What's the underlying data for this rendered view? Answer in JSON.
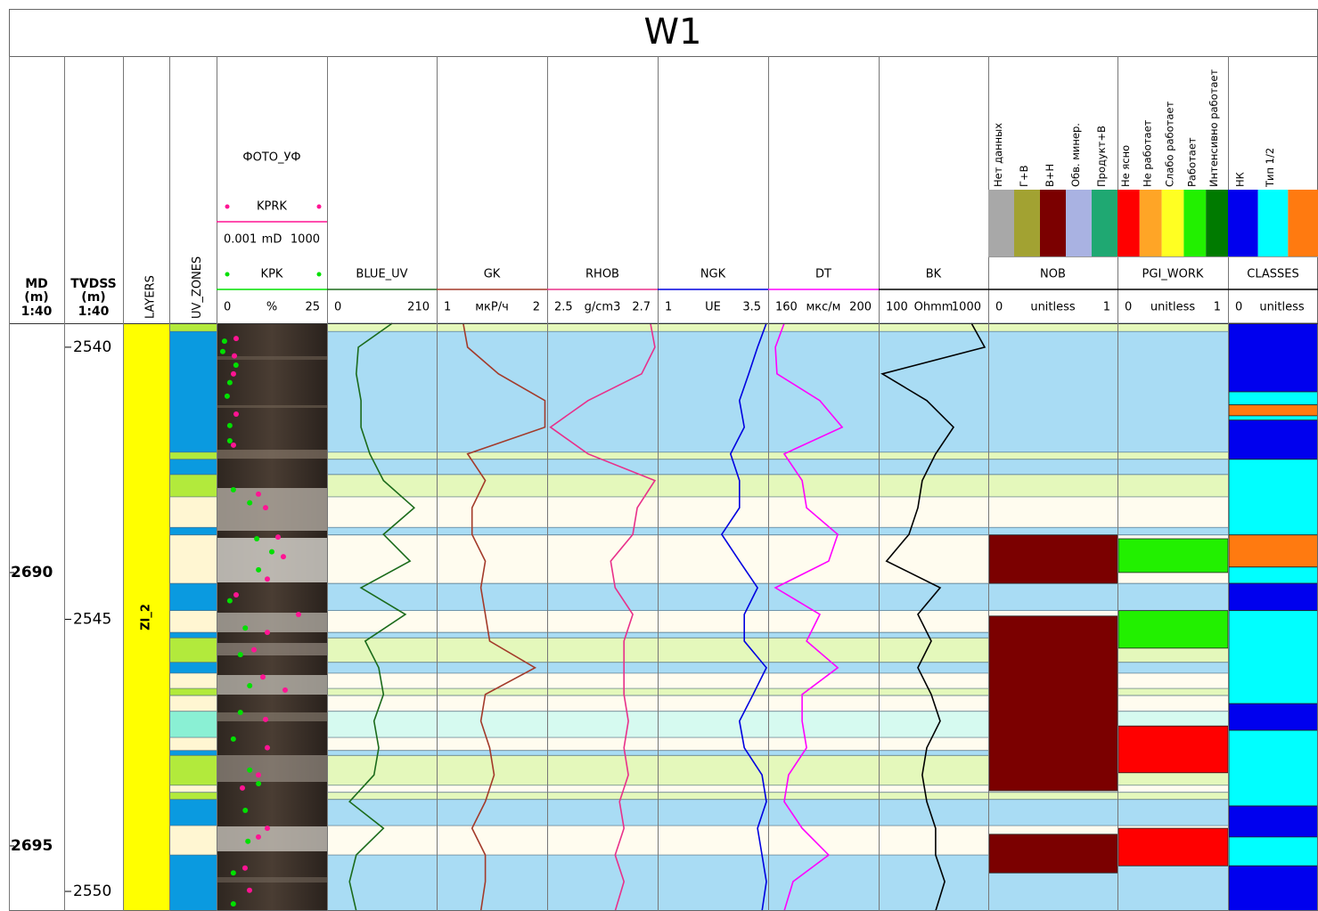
{
  "title": "W1",
  "curve_depths": [
    2539.56,
    2540.0,
    2540.49,
    2540.98,
    2541.47,
    2541.96,
    2542.45,
    2542.95,
    2543.44,
    2543.93,
    2544.42,
    2544.91,
    2545.4,
    2545.89,
    2546.38,
    2546.87,
    2547.36,
    2547.86,
    2548.35,
    2548.84,
    2549.33,
    2549.82,
    2550.36
  ],
  "tracks": [
    {
      "name": "MD",
      "unit": "(m)",
      "scale": "1:40",
      "lim": [
        2685.44,
        2696.19
      ],
      "ticks": [
        2690,
        2695
      ]
    },
    {
      "name": "TVDSS",
      "unit": "(m)",
      "scale": "1:40",
      "lim": [
        2539.56,
        2550.36
      ],
      "ticks": [
        2540,
        2545,
        2550
      ]
    },
    {
      "name": "LAYERS",
      "layers": [
        {
          "name": "ZI_2",
          "color": "#ffff00"
        }
      ]
    },
    {
      "name": "UV_ZONES",
      "zones": [
        {
          "top": 2539.56,
          "base": 2539.71,
          "color": "#b2ea3c"
        },
        {
          "top": 2539.71,
          "base": 2541.93,
          "color": "#0a9ae0"
        },
        {
          "top": 2541.93,
          "base": 2542.06,
          "color": "#b2ea3c"
        },
        {
          "top": 2542.06,
          "base": 2542.34,
          "color": "#0a9ae0"
        },
        {
          "top": 2542.34,
          "base": 2542.75,
          "color": "#b2ea3c"
        },
        {
          "top": 2542.75,
          "base": 2543.31,
          "color": "#fff6d2"
        },
        {
          "top": 2543.31,
          "base": 2543.45,
          "color": "#0a9ae0"
        },
        {
          "top": 2543.45,
          "base": 2544.34,
          "color": "#fff6d2"
        },
        {
          "top": 2544.34,
          "base": 2544.84,
          "color": "#0a9ae0"
        },
        {
          "top": 2544.84,
          "base": 2545.24,
          "color": "#fff6d2"
        },
        {
          "top": 2545.24,
          "base": 2545.34,
          "color": "#0a9ae0"
        },
        {
          "top": 2545.34,
          "base": 2545.79,
          "color": "#b2ea3c"
        },
        {
          "top": 2545.79,
          "base": 2545.99,
          "color": "#0a9ae0"
        },
        {
          "top": 2545.99,
          "base": 2546.27,
          "color": "#fff6d2"
        },
        {
          "top": 2546.27,
          "base": 2546.4,
          "color": "#b2ea3c"
        },
        {
          "top": 2546.4,
          "base": 2546.69,
          "color": "#fff6d2"
        },
        {
          "top": 2546.69,
          "base": 2547.17,
          "color": "#8af0d4"
        },
        {
          "top": 2547.17,
          "base": 2547.41,
          "color": "#fff6d2"
        },
        {
          "top": 2547.41,
          "base": 2547.5,
          "color": "#0a9ae0"
        },
        {
          "top": 2547.5,
          "base": 2548.05,
          "color": "#b2ea3c"
        },
        {
          "top": 2548.05,
          "base": 2548.18,
          "color": "#fff6d2"
        },
        {
          "top": 2548.18,
          "base": 2548.31,
          "color": "#b2ea3c"
        },
        {
          "top": 2548.31,
          "base": 2548.79,
          "color": "#0a9ae0"
        },
        {
          "top": 2548.79,
          "base": 2549.33,
          "color": "#fff6d2"
        },
        {
          "top": 2549.33,
          "base": 2550.36,
          "color": "#0a9ae0"
        }
      ]
    },
    {
      "name": "ФОТО_УФ",
      "curves": [
        {
          "name": "KPRK",
          "type": "scatter",
          "unit": "mD",
          "scale": [
            0.001,
            1000
          ],
          "log": true,
          "color": "#ff1493",
          "depths": [
            2539.84,
            2540.16,
            2540.49,
            2541.23,
            2541.8,
            2542.7,
            2542.95,
            2543.49,
            2543.85,
            2544.26,
            2544.55,
            2544.91,
            2545.24,
            2545.56,
            2546.06,
            2546.3,
            2546.84,
            2547.36,
            2547.86,
            2548.1,
            2548.84,
            2549.0,
            2549.57,
            2549.98
          ],
          "values": [
            0.0116,
            0.0093,
            0.0083,
            0.0116,
            0.0083,
            0.188,
            0.458,
            2.18,
            4.25,
            0.573,
            0.0116,
            28.2,
            0.573,
            0.108,
            0.328,
            5.31,
            0.458,
            0.573,
            0.188,
            0.0253,
            0.573,
            0.188,
            0.0353,
            0.0617
          ]
        },
        {
          "name": "KPK",
          "type": "scatter",
          "unit": "%",
          "scale": [
            0,
            25
          ],
          "color": "#00e000",
          "depths": [
            2539.89,
            2540.08,
            2540.33,
            2540.65,
            2540.9,
            2541.44,
            2541.72,
            2542.62,
            2542.86,
            2543.52,
            2543.76,
            2544.09,
            2544.66,
            2545.16,
            2545.65,
            2546.22,
            2546.71,
            2547.2,
            2547.77,
            2548.02,
            2548.51,
            2549.08,
            2549.66,
            2550.23
          ],
          "values": [
            1.8,
            1.4,
            4.4,
            3.0,
            2.4,
            3.0,
            3.0,
            3.8,
            7.5,
            9.1,
            12.5,
            9.5,
            3.0,
            6.5,
            5.4,
            7.5,
            5.4,
            3.8,
            7.5,
            9.5,
            6.5,
            7.1,
            3.8,
            3.8
          ]
        }
      ]
    },
    {
      "curves": [
        {
          "name": "BLUE_UV",
          "type": "line",
          "scale": [
            0,
            210
          ],
          "color": "#1b6b1b",
          "values": [
            125,
            60,
            56,
            65,
            65,
            82,
            108,
            167,
            108,
            159,
            65,
            150,
            73,
            99,
            108,
            90,
            99,
            90,
            43,
            108,
            56,
            43,
            56
          ]
        }
      ]
    },
    {
      "curves": [
        {
          "name": "GK",
          "type": "line",
          "unit": "мкР/ч",
          "scale": [
            1,
            2
          ],
          "color": "#a33a2a",
          "values": [
            1.24,
            1.28,
            1.56,
            1.98,
            1.98,
            1.28,
            1.44,
            1.32,
            1.32,
            1.44,
            1.4,
            1.44,
            1.48,
            1.89,
            1.44,
            1.4,
            1.48,
            1.52,
            1.44,
            1.32,
            1.44,
            1.44,
            1.4
          ]
        }
      ]
    },
    {
      "curves": [
        {
          "name": "RHOB",
          "type": "line",
          "unit": "g/cm3",
          "scale": [
            2.5,
            2.7
          ],
          "color": "#e8308a",
          "values": [
            2.687,
            2.695,
            2.671,
            2.574,
            2.506,
            2.574,
            2.695,
            2.663,
            2.655,
            2.615,
            2.623,
            2.655,
            2.639,
            2.639,
            2.639,
            2.647,
            2.639,
            2.647,
            2.631,
            2.639,
            2.623,
            2.639,
            2.623
          ]
        }
      ]
    },
    {
      "curves": [
        {
          "name": "NGK",
          "type": "line",
          "unit": "UE",
          "scale": [
            1,
            3.5
          ],
          "color": "#0000e0",
          "values": [
            3.46,
            3.26,
            3.06,
            2.85,
            2.96,
            2.65,
            2.85,
            2.85,
            2.45,
            2.85,
            3.26,
            2.96,
            2.96,
            3.46,
            3.16,
            2.85,
            2.96,
            3.36,
            3.46,
            3.26,
            3.36,
            3.46,
            3.36
          ]
        }
      ]
    },
    {
      "curves": [
        {
          "name": "DT",
          "type": "line",
          "unit": "мкс/м",
          "scale": [
            160,
            200
          ],
          "color": "#ff00ff",
          "values": [
            165.8,
            162.6,
            163.2,
            178.7,
            186.8,
            165.8,
            172.3,
            173.9,
            185.2,
            181.9,
            162.6,
            178.7,
            173.9,
            185.2,
            172.3,
            172.3,
            173.9,
            167.4,
            165.8,
            172.3,
            181.9,
            169.0,
            165.8
          ]
        }
      ]
    },
    {
      "curves": [
        {
          "name": "BK",
          "type": "line",
          "unit": "Ohmm",
          "scale": [
            100,
            1000
          ],
          "log": true,
          "color": "#000000",
          "values": [
            702,
            928,
            108,
            275,
            482,
            331,
            250,
            228,
            189,
            118,
            364,
            228,
            302,
            228,
            302,
            364,
            275,
            250,
            275,
            331,
            331,
            400,
            331
          ]
        }
      ]
    },
    {
      "name": "NOB",
      "unit": "unitless",
      "scale": [
        0,
        1
      ],
      "legend": [
        {
          "label": "Нет данных",
          "color": "#a8a8a8"
        },
        {
          "label": "Г+В",
          "color": "#a2a232"
        },
        {
          "label": "В+Н",
          "color": "#7b0000"
        },
        {
          "label": "Обв. минер.",
          "color": "#a9b2e2"
        },
        {
          "label": "Продукт+В",
          "color": "#1fa872"
        }
      ],
      "intervals": [
        {
          "top": 2543.45,
          "base": 2544.34,
          "color": "#7b0000"
        },
        {
          "top": 2544.94,
          "base": 2548.15,
          "color": "#7b0000"
        },
        {
          "top": 2548.95,
          "base": 2549.66,
          "color": "#7b0000"
        }
      ]
    },
    {
      "name": "PGI_WORK",
      "unit": "unitless",
      "scale": [
        0,
        1
      ],
      "legend": [
        {
          "label": "Не ясно",
          "color": "#ff0000"
        },
        {
          "label": "Не работает",
          "color": "#ffa526"
        },
        {
          "label": "Слабо работает",
          "color": "#ffff22"
        },
        {
          "label": "Работает",
          "color": "#22f000"
        },
        {
          "label": "Интенсивно работает",
          "color": "#007a00"
        }
      ],
      "intervals": [
        {
          "top": 2543.52,
          "base": 2544.14,
          "color": "#22f000"
        },
        {
          "top": 2544.84,
          "base": 2545.53,
          "color": "#22f000"
        },
        {
          "top": 2546.96,
          "base": 2547.82,
          "color": "#ff0000"
        },
        {
          "top": 2548.84,
          "base": 2549.53,
          "color": "#ff0000"
        }
      ]
    },
    {
      "name": "CLASSES",
      "unit": "unitless",
      "scale": [
        0
      ],
      "legend": [
        {
          "label": "НК",
          "color": "#0000ee"
        },
        {
          "label": "Тип 1/2",
          "color": "#00ffff"
        },
        {
          "label": null,
          "color": "#ff7a10"
        }
      ],
      "intervals": [
        {
          "top": 2539.56,
          "base": 2540.82,
          "color": "#0000ee"
        },
        {
          "top": 2540.82,
          "base": 2541.06,
          "color": "#00ffff"
        },
        {
          "top": 2541.06,
          "base": 2541.26,
          "color": "#ff7a10"
        },
        {
          "top": 2541.26,
          "base": 2541.34,
          "color": "#00ffff"
        },
        {
          "top": 2541.34,
          "base": 2542.06,
          "color": "#0000ee"
        },
        {
          "top": 2542.06,
          "base": 2543.45,
          "color": "#00ffff"
        },
        {
          "top": 2543.45,
          "base": 2544.04,
          "color": "#ff7a10"
        },
        {
          "top": 2544.04,
          "base": 2544.34,
          "color": "#00ffff"
        },
        {
          "top": 2544.34,
          "base": 2544.84,
          "color": "#0000ee"
        },
        {
          "top": 2544.84,
          "base": 2546.55,
          "color": "#00ffff"
        },
        {
          "top": 2546.55,
          "base": 2547.04,
          "color": "#0000ee"
        },
        {
          "top": 2547.04,
          "base": 2548.43,
          "color": "#00ffff"
        },
        {
          "top": 2548.43,
          "base": 2549.0,
          "color": "#0000ee"
        },
        {
          "top": 2549.0,
          "base": 2549.53,
          "color": "#00ffff"
        },
        {
          "top": 2549.53,
          "base": 2550.36,
          "color": "#0000ee"
        }
      ]
    }
  ]
}
